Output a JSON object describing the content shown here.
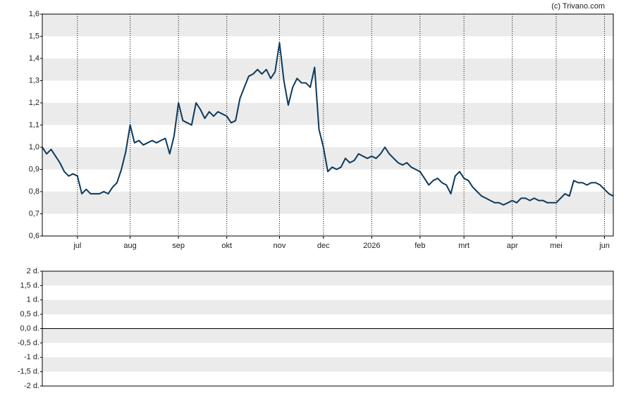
{
  "source": "(c) Trivano.com",
  "chart_data": [
    {
      "type": "line",
      "color": "#0d3a5c",
      "grid": true,
      "categories": [
        null,
        null,
        null,
        null,
        null,
        null,
        null,
        null,
        "jul",
        null,
        null,
        null,
        null,
        null,
        null,
        null,
        null,
        null,
        null,
        null,
        "aug",
        null,
        null,
        null,
        null,
        null,
        null,
        null,
        null,
        null,
        null,
        "sep",
        null,
        null,
        null,
        null,
        null,
        null,
        null,
        null,
        null,
        null,
        "okt",
        null,
        null,
        null,
        null,
        null,
        null,
        null,
        null,
        null,
        null,
        null,
        "nov",
        null,
        null,
        null,
        null,
        null,
        null,
        null,
        null,
        null,
        "dec",
        null,
        null,
        null,
        null,
        null,
        null,
        null,
        null,
        null,
        null,
        "2026",
        null,
        null,
        null,
        null,
        null,
        null,
        null,
        null,
        null,
        null,
        "feb",
        null,
        null,
        null,
        null,
        null,
        null,
        null,
        null,
        null,
        "mrt",
        null,
        null,
        null,
        null,
        null,
        null,
        null,
        null,
        null,
        null,
        "apr",
        null,
        null,
        null,
        null,
        null,
        null,
        null,
        null,
        null,
        "mei",
        null,
        null,
        null,
        null,
        null,
        null,
        null,
        null,
        null,
        null,
        "jun",
        null,
        null
      ],
      "values": [
        1.0,
        0.97,
        0.99,
        0.96,
        0.93,
        0.89,
        0.87,
        0.88,
        0.87,
        0.79,
        0.81,
        0.79,
        0.79,
        0.79,
        0.8,
        0.79,
        0.82,
        0.84,
        0.9,
        0.98,
        1.1,
        1.02,
        1.03,
        1.01,
        1.02,
        1.03,
        1.02,
        1.03,
        1.04,
        0.97,
        1.05,
        1.2,
        1.12,
        1.11,
        1.1,
        1.2,
        1.17,
        1.13,
        1.16,
        1.14,
        1.16,
        1.15,
        1.14,
        1.11,
        1.12,
        1.22,
        1.27,
        1.32,
        1.33,
        1.35,
        1.33,
        1.35,
        1.31,
        1.34,
        1.47,
        1.3,
        1.19,
        1.27,
        1.31,
        1.29,
        1.29,
        1.27,
        1.36,
        1.08,
        1.0,
        0.89,
        0.91,
        0.9,
        0.91,
        0.95,
        0.93,
        0.94,
        0.97,
        0.96,
        0.95,
        0.96,
        0.95,
        0.97,
        1.0,
        0.97,
        0.95,
        0.93,
        0.92,
        0.93,
        0.91,
        0.9,
        0.89,
        0.86,
        0.83,
        0.85,
        0.86,
        0.84,
        0.83,
        0.79,
        0.87,
        0.89,
        0.86,
        0.85,
        0.82,
        0.8,
        0.78,
        0.77,
        0.76,
        0.75,
        0.75,
        0.74,
        0.75,
        0.76,
        0.75,
        0.77,
        0.77,
        0.76,
        0.77,
        0.76,
        0.76,
        0.75,
        0.75,
        0.75,
        0.77,
        0.79,
        0.78,
        0.85,
        0.84,
        0.84,
        0.83,
        0.84,
        0.84,
        0.83,
        0.81,
        0.79,
        0.78
      ],
      "ylim": [
        0.6,
        1.6
      ],
      "yticks": [
        {
          "value": 0.6,
          "label": "0,6"
        },
        {
          "value": 0.7,
          "label": "0,7"
        },
        {
          "value": 0.8,
          "label": "0,8"
        },
        {
          "value": 0.9,
          "label": "0,9"
        },
        {
          "value": 1.0,
          "label": "1,0"
        },
        {
          "value": 1.1,
          "label": "1,1"
        },
        {
          "value": 1.2,
          "label": "1,2"
        },
        {
          "value": 1.3,
          "label": "1,3"
        },
        {
          "value": 1.4,
          "label": "1,4"
        },
        {
          "value": 1.5,
          "label": "1,5"
        },
        {
          "value": 1.6,
          "label": "1,6"
        }
      ]
    },
    {
      "type": "line",
      "ylim": [
        -2,
        2
      ],
      "yticks": [
        {
          "value": -2,
          "label": "-2 d."
        },
        {
          "value": -1.5,
          "label": "-1,5 d."
        },
        {
          "value": -1,
          "label": "-1 d."
        },
        {
          "value": -0.5,
          "label": "-0,5 d."
        },
        {
          "value": 0,
          "label": "0,0 d."
        },
        {
          "value": 0.5,
          "label": "0,5 d."
        },
        {
          "value": 1,
          "label": "1 d."
        },
        {
          "value": 1.5,
          "label": "1,5 d."
        },
        {
          "value": 2,
          "label": "2 d."
        }
      ]
    }
  ]
}
